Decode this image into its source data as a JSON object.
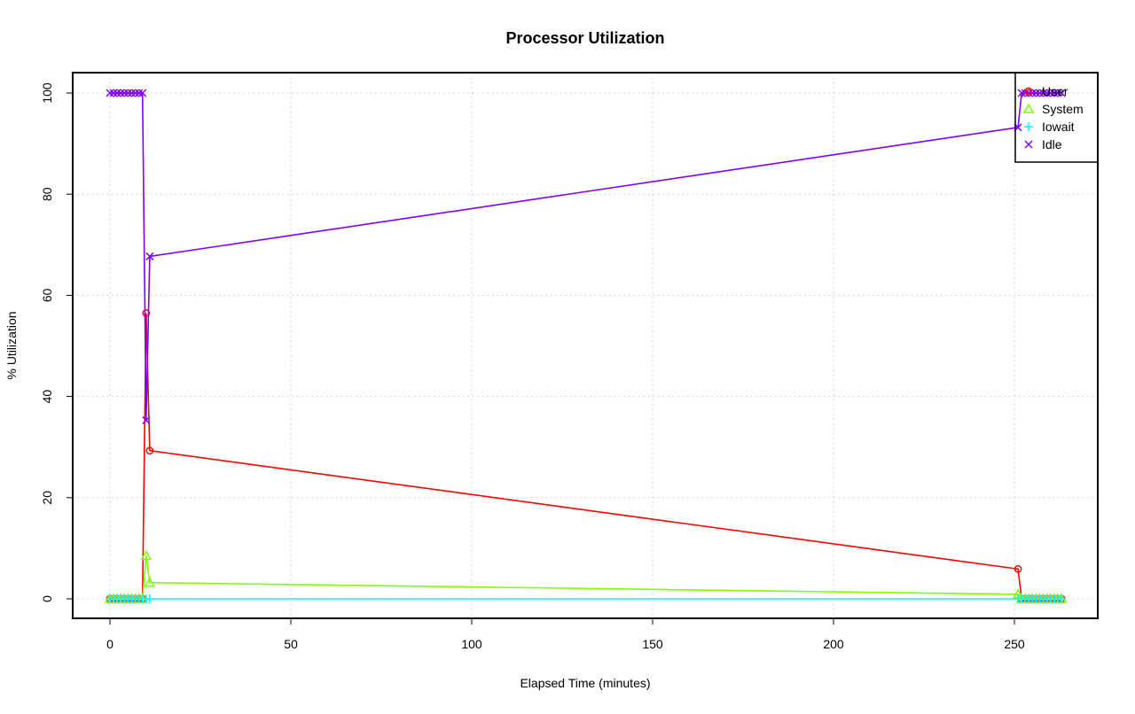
{
  "chart_data": {
    "type": "line",
    "title": "Processor Utilization",
    "xlabel": "Elapsed Time (minutes)",
    "ylabel": "% Utilization",
    "xlim": [
      -10,
      273
    ],
    "ylim": [
      -4,
      104
    ],
    "xticks": [
      0,
      50,
      100,
      150,
      200,
      250
    ],
    "yticks": [
      0,
      20,
      40,
      60,
      80,
      100
    ],
    "grid": true,
    "legend_position": "top-right",
    "x": [
      0,
      1,
      2,
      3,
      4,
      5,
      6,
      7,
      8,
      9,
      10,
      11,
      251,
      252,
      253,
      254,
      255,
      256,
      257,
      258,
      259,
      260,
      261,
      262,
      263
    ],
    "series": [
      {
        "name": "User",
        "color": "#FF0000",
        "marker": "circle",
        "values": [
          0,
          0,
          0,
          0,
          0,
          0,
          0,
          0,
          0,
          0,
          56.5,
          29.3,
          5.9,
          0,
          0,
          0,
          0,
          0,
          0,
          0,
          0,
          0,
          0,
          0,
          0
        ]
      },
      {
        "name": "System",
        "color": "#80FF00",
        "marker": "triangle",
        "values": [
          0,
          0,
          0,
          0,
          0,
          0,
          0,
          0,
          0,
          0,
          8.5,
          3.2,
          0.9,
          0,
          0,
          0,
          0,
          0,
          0,
          0,
          0,
          0,
          0,
          0,
          0
        ]
      },
      {
        "name": "Iowait",
        "color": "#00FFFF",
        "marker": "plus",
        "values": [
          0,
          0,
          0,
          0,
          0,
          0,
          0,
          0,
          0,
          0,
          0,
          0,
          0,
          0,
          0,
          0,
          0,
          0,
          0,
          0,
          0,
          0,
          0,
          0,
          0
        ]
      },
      {
        "name": "Idle",
        "color": "#8000FF",
        "marker": "cross",
        "values": [
          100,
          100,
          100,
          100,
          100,
          100,
          100,
          100,
          100,
          100,
          35.3,
          67.7,
          93.2,
          100,
          100,
          100,
          100,
          100,
          100,
          100,
          100,
          100,
          100,
          100,
          100
        ]
      }
    ]
  }
}
